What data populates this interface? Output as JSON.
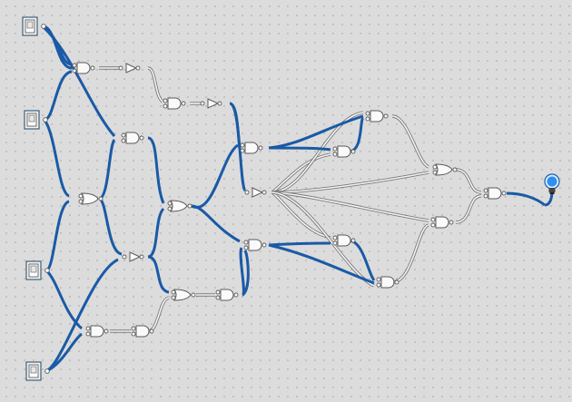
{
  "diagram": {
    "palette": {
      "background": "#dcdcdc",
      "grid_dot": "#bdbdbd",
      "wire_on": "#1a5aa6",
      "wire_off": "#7a7a7a",
      "gate_fill": "#fafafa",
      "bulb_on": "#2d8ff0"
    },
    "inputs": [
      {
        "id": "in1",
        "kind": "toggle-switch",
        "state": "on"
      },
      {
        "id": "in2",
        "kind": "toggle-switch",
        "state": "on"
      },
      {
        "id": "in3",
        "kind": "toggle-switch",
        "state": "on"
      },
      {
        "id": "in4",
        "kind": "toggle-switch",
        "state": "on"
      }
    ],
    "gates": [
      {
        "id": "g1",
        "kind": "and"
      },
      {
        "id": "g2",
        "kind": "not"
      },
      {
        "id": "g3",
        "kind": "and"
      },
      {
        "id": "g4",
        "kind": "not"
      },
      {
        "id": "g5",
        "kind": "and"
      },
      {
        "id": "g6",
        "kind": "or"
      },
      {
        "id": "g7",
        "kind": "and"
      },
      {
        "id": "g8",
        "kind": "and"
      },
      {
        "id": "g9",
        "kind": "and"
      },
      {
        "id": "g10",
        "kind": "not"
      },
      {
        "id": "g11",
        "kind": "or"
      },
      {
        "id": "g12",
        "kind": "not"
      },
      {
        "id": "g13",
        "kind": "and"
      },
      {
        "id": "g14",
        "kind": "and"
      },
      {
        "id": "g15",
        "kind": "and"
      },
      {
        "id": "g16",
        "kind": "or"
      },
      {
        "id": "g17",
        "kind": "and"
      },
      {
        "id": "g18",
        "kind": "and"
      },
      {
        "id": "g19",
        "kind": "or"
      },
      {
        "id": "g20",
        "kind": "and"
      },
      {
        "id": "g21",
        "kind": "and"
      },
      {
        "id": "g22",
        "kind": "and"
      },
      {
        "id": "g23",
        "kind": "and"
      }
    ],
    "output": {
      "id": "out",
      "kind": "light-bulb",
      "state": "on"
    }
  }
}
